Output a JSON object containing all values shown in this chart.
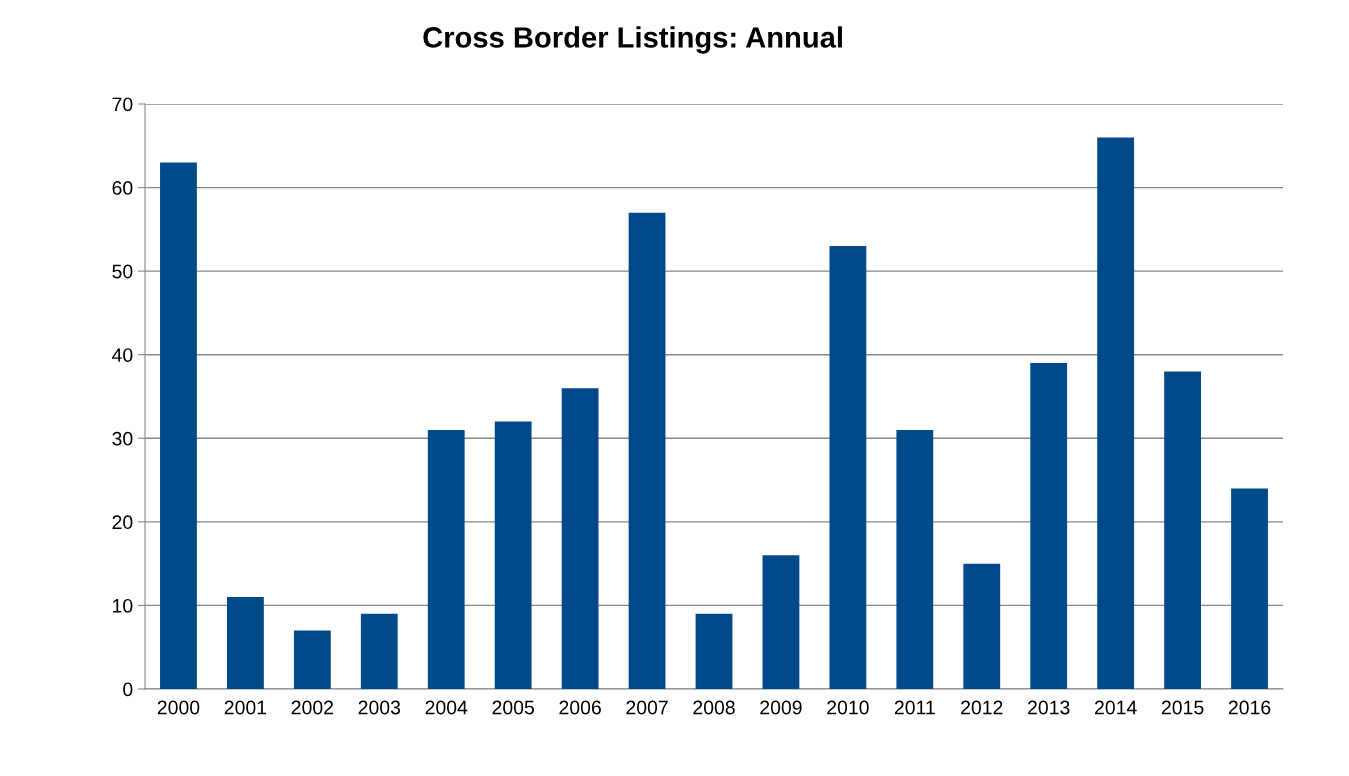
{
  "chart_data": {
    "type": "bar",
    "title": "Cross Border Listings: Annual",
    "categories": [
      "2000",
      "2001",
      "2002",
      "2003",
      "2004",
      "2005",
      "2006",
      "2007",
      "2008",
      "2009",
      "2010",
      "2011",
      "2012",
      "2013",
      "2014",
      "2015",
      "2016"
    ],
    "values": [
      63,
      11,
      7,
      9,
      31,
      32,
      36,
      57,
      9,
      16,
      53,
      31,
      15,
      39,
      66,
      38,
      24
    ],
    "color": "#004a8a",
    "ylim": [
      0,
      70
    ],
    "yticks": [
      0,
      10,
      20,
      30,
      40,
      50,
      60,
      70
    ],
    "grid": "y"
  }
}
